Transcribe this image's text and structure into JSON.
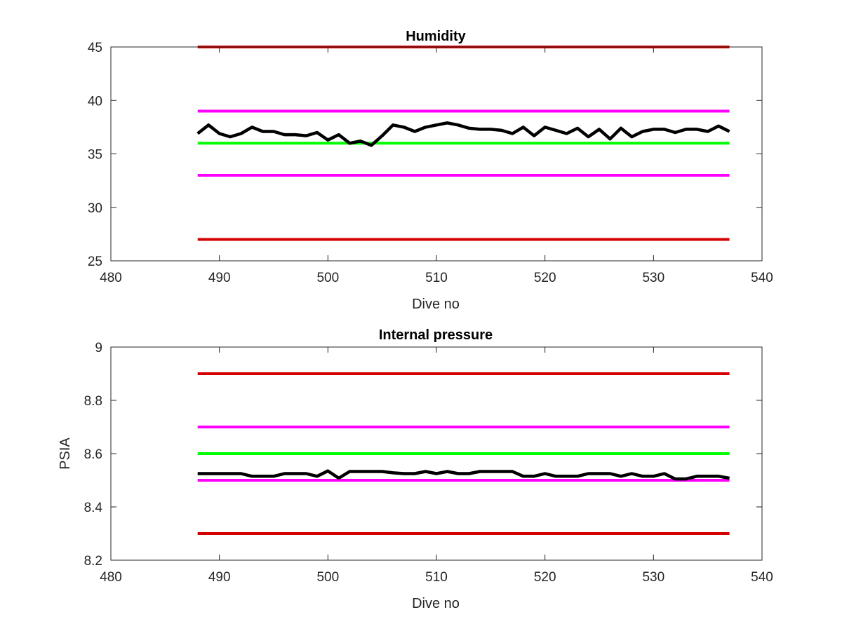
{
  "chart_data": [
    {
      "type": "line",
      "title": "Humidity",
      "xlabel": "Dive no",
      "ylabel": "",
      "xlim": [
        480,
        540
      ],
      "ylim": [
        25,
        45
      ],
      "xticks": [
        480,
        490,
        500,
        510,
        520,
        530,
        540
      ],
      "yticks": [
        25,
        30,
        35,
        40,
        45
      ],
      "xtick_labels": [
        "480",
        "490",
        "500",
        "510",
        "520",
        "530",
        "540"
      ],
      "ytick_labels": [
        "25",
        "30",
        "35",
        "40",
        "45"
      ],
      "grid": false,
      "series": [
        {
          "color": "#d40000",
          "x": [
            488,
            537
          ],
          "y": [
            45,
            45
          ]
        },
        {
          "color": "#ff00ff",
          "x": [
            488,
            537
          ],
          "y": [
            39,
            39
          ]
        },
        {
          "color": "#00ff00",
          "x": [
            488,
            537
          ],
          "y": [
            36,
            36
          ]
        },
        {
          "color": "#ff00ff",
          "x": [
            488,
            537
          ],
          "y": [
            33,
            33
          ]
        },
        {
          "color": "#d40000",
          "x": [
            488,
            537
          ],
          "y": [
            27,
            27
          ]
        },
        {
          "color": "#000000",
          "x": [
            488,
            489,
            490,
            491,
            492,
            493,
            494,
            495,
            496,
            497,
            498,
            499,
            500,
            501,
            502,
            503,
            504,
            505,
            506,
            507,
            508,
            509,
            510,
            511,
            512,
            513,
            514,
            515,
            516,
            517,
            518,
            519,
            520,
            521,
            522,
            523,
            524,
            525,
            526,
            527,
            528,
            529,
            530,
            531,
            532,
            533,
            534,
            535,
            536,
            537
          ],
          "y": [
            36.9,
            37.7,
            36.9,
            36.6,
            36.9,
            37.5,
            37.1,
            37.1,
            36.8,
            36.8,
            36.7,
            37.0,
            36.3,
            36.8,
            36.0,
            36.2,
            35.8,
            36.7,
            37.7,
            37.5,
            37.1,
            37.5,
            37.7,
            37.9,
            37.7,
            37.4,
            37.3,
            37.3,
            37.2,
            36.9,
            37.5,
            36.7,
            37.5,
            37.2,
            36.9,
            37.4,
            36.6,
            37.3,
            36.4,
            37.4,
            36.6,
            37.1,
            37.3,
            37.3,
            37.0,
            37.3,
            37.3,
            37.1,
            37.6,
            37.1
          ]
        }
      ]
    },
    {
      "type": "line",
      "title": "Internal pressure",
      "xlabel": "Dive no",
      "ylabel": "PSIA",
      "xlim": [
        480,
        540
      ],
      "ylim": [
        8.2,
        9
      ],
      "xticks": [
        480,
        490,
        500,
        510,
        520,
        530,
        540
      ],
      "yticks": [
        8.2,
        8.4,
        8.6,
        8.8,
        9
      ],
      "xtick_labels": [
        "480",
        "490",
        "500",
        "510",
        "520",
        "530",
        "540"
      ],
      "ytick_labels": [
        "8.2",
        "8.4",
        "8.6",
        "8.8",
        "9"
      ],
      "grid": false,
      "series": [
        {
          "color": "#d40000",
          "x": [
            488,
            537
          ],
          "y": [
            8.9,
            8.9
          ]
        },
        {
          "color": "#ff00ff",
          "x": [
            488,
            537
          ],
          "y": [
            8.7,
            8.7
          ]
        },
        {
          "color": "#00ff00",
          "x": [
            488,
            537
          ],
          "y": [
            8.6,
            8.6
          ]
        },
        {
          "color": "#ff00ff",
          "x": [
            488,
            537
          ],
          "y": [
            8.5,
            8.5
          ]
        },
        {
          "color": "#d40000",
          "x": [
            488,
            537
          ],
          "y": [
            8.3,
            8.3
          ]
        },
        {
          "color": "#000000",
          "x": [
            488,
            489,
            490,
            491,
            492,
            493,
            494,
            495,
            496,
            497,
            498,
            499,
            500,
            501,
            502,
            503,
            504,
            505,
            506,
            507,
            508,
            509,
            510,
            511,
            512,
            513,
            514,
            515,
            516,
            517,
            518,
            519,
            520,
            521,
            522,
            523,
            524,
            525,
            526,
            527,
            528,
            529,
            530,
            531,
            532,
            533,
            534,
            535,
            536,
            537
          ],
          "y": [
            8.525,
            8.525,
            8.525,
            8.525,
            8.525,
            8.515,
            8.515,
            8.515,
            8.525,
            8.525,
            8.525,
            8.515,
            8.535,
            8.508,
            8.533,
            8.533,
            8.533,
            8.533,
            8.528,
            8.525,
            8.525,
            8.533,
            8.525,
            8.533,
            8.525,
            8.525,
            8.533,
            8.533,
            8.533,
            8.533,
            8.515,
            8.515,
            8.525,
            8.515,
            8.515,
            8.515,
            8.525,
            8.525,
            8.525,
            8.515,
            8.525,
            8.515,
            8.515,
            8.525,
            8.505,
            8.505,
            8.515,
            8.515,
            8.515,
            8.508
          ]
        }
      ]
    }
  ]
}
